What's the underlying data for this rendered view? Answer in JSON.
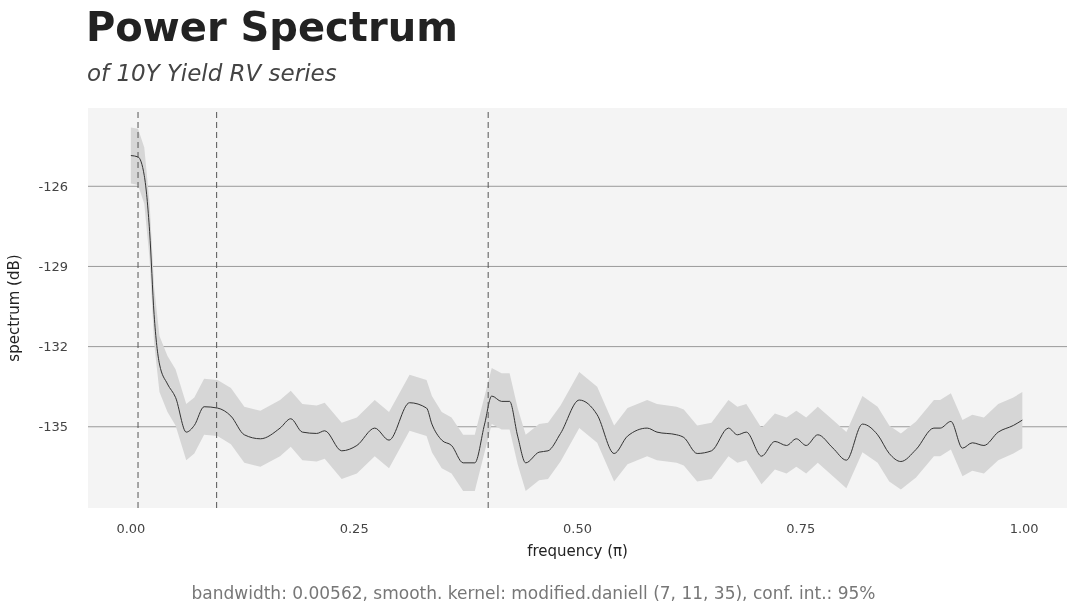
{
  "chart_data": {
    "type": "line",
    "title": "Power Spectrum",
    "subtitle": "of 10Y Yield RV series",
    "xlabel": "frequency (π)",
    "ylabel": "spectrum (dB)",
    "annotations": [
      "bandwidth: 0.00562, smooth. kernel: modified.daniell (7, 11, 35), conf. int.: 95%"
    ],
    "x": [
      0.0,
      0.008,
      0.015,
      0.021,
      0.026,
      0.032,
      0.041,
      0.05,
      0.062,
      0.071,
      0.082,
      0.097,
      0.112,
      0.127,
      0.145,
      0.167,
      0.179,
      0.192,
      0.208,
      0.217,
      0.236,
      0.253,
      0.273,
      0.289,
      0.312,
      0.331,
      0.337,
      0.348,
      0.359,
      0.372,
      0.385,
      0.396,
      0.404,
      0.415,
      0.424,
      0.433,
      0.442,
      0.457,
      0.467,
      0.481,
      0.502,
      0.522,
      0.541,
      0.556,
      0.578,
      0.589,
      0.611,
      0.619,
      0.634,
      0.65,
      0.669,
      0.679,
      0.689,
      0.706,
      0.721,
      0.734,
      0.745,
      0.756,
      0.769,
      0.786,
      0.801,
      0.819,
      0.836,
      0.849,
      0.862,
      0.879,
      0.899,
      0.906,
      0.918,
      0.931,
      0.942,
      0.955,
      0.971,
      0.988,
      0.998
    ],
    "series": [
      {
        "color": "#333333",
        "values": [
          -124.85,
          -124.9,
          -125.6,
          -127.7,
          -130.8,
          -132.65,
          -133.4,
          -133.9,
          -135.2,
          -134.95,
          -134.25,
          -134.3,
          -134.6,
          -135.3,
          -135.45,
          -135.05,
          -134.7,
          -135.2,
          -135.25,
          -135.15,
          -135.9,
          -135.7,
          -135.05,
          -135.5,
          -134.1,
          -134.3,
          -134.9,
          -135.5,
          -135.7,
          -136.35,
          -136.35,
          -134.9,
          -133.85,
          -134.05,
          -134.05,
          -135.35,
          -136.35,
          -135.95,
          -135.9,
          -135.25,
          -134.0,
          -134.55,
          -136.0,
          -135.35,
          -135.05,
          -135.2,
          -135.3,
          -135.4,
          -136.0,
          -135.9,
          -135.05,
          -135.3,
          -135.2,
          -136.1,
          -135.55,
          -135.7,
          -135.45,
          -135.7,
          -135.3,
          -135.8,
          -136.25,
          -134.9,
          -135.3,
          -136.0,
          -136.3,
          -135.85,
          -135.05,
          -135.05,
          -134.8,
          -135.8,
          -135.6,
          -135.7,
          -135.2,
          -134.95,
          -134.75
        ],
        "lower": [
          -125.9,
          -125.95,
          -126.65,
          -128.75,
          -131.85,
          -133.7,
          -134.45,
          -134.95,
          -136.25,
          -136.0,
          -135.3,
          -135.35,
          -135.65,
          -136.35,
          -136.5,
          -136.1,
          -135.75,
          -136.25,
          -136.3,
          -136.2,
          -136.95,
          -136.75,
          -136.1,
          -136.55,
          -135.15,
          -135.35,
          -135.95,
          -136.55,
          -136.75,
          -137.4,
          -137.4,
          -135.95,
          -134.9,
          -135.1,
          -135.1,
          -136.4,
          -137.4,
          -137.0,
          -136.95,
          -136.3,
          -135.05,
          -135.6,
          -137.05,
          -136.4,
          -136.1,
          -136.25,
          -136.35,
          -136.45,
          -137.05,
          -136.95,
          -136.1,
          -136.35,
          -136.25,
          -137.15,
          -136.6,
          -136.75,
          -136.5,
          -136.75,
          -136.35,
          -136.85,
          -137.3,
          -135.95,
          -136.35,
          -137.05,
          -137.35,
          -136.9,
          -136.1,
          -136.1,
          -135.85,
          -136.85,
          -136.65,
          -136.75,
          -136.25,
          -136.0,
          -135.8
        ],
        "upper": [
          -123.8,
          -123.85,
          -124.55,
          -126.65,
          -129.75,
          -131.6,
          -132.35,
          -132.85,
          -134.15,
          -133.9,
          -133.2,
          -133.25,
          -133.55,
          -134.25,
          -134.4,
          -134.0,
          -133.65,
          -134.15,
          -134.2,
          -134.1,
          -134.85,
          -134.65,
          -134.0,
          -134.45,
          -133.05,
          -133.25,
          -133.85,
          -134.45,
          -134.65,
          -135.3,
          -135.3,
          -133.85,
          -132.8,
          -133.0,
          -133.0,
          -134.3,
          -135.3,
          -134.9,
          -134.85,
          -134.2,
          -132.95,
          -133.5,
          -134.95,
          -134.3,
          -134.0,
          -134.15,
          -134.25,
          -134.35,
          -134.95,
          -134.85,
          -134.0,
          -134.25,
          -134.15,
          -135.05,
          -134.5,
          -134.65,
          -134.4,
          -134.65,
          -134.25,
          -134.75,
          -135.2,
          -133.85,
          -134.25,
          -134.95,
          -135.25,
          -134.8,
          -134.0,
          -134.0,
          -133.75,
          -134.75,
          -134.55,
          -134.65,
          -134.15,
          -133.9,
          -133.7
        ]
      }
    ],
    "xlim": [
      -0.048,
      1.048
    ],
    "ylim": [
      -138.04,
      -123.07
    ],
    "xticks": [
      {
        "value": 0,
        "label": "0.00"
      },
      {
        "value": 0.25,
        "label": "0.25"
      },
      {
        "value": 0.5,
        "label": "0.50"
      },
      {
        "value": 0.75,
        "label": "0.75"
      },
      {
        "value": 1,
        "label": "1.00"
      }
    ],
    "yticks": [
      -135,
      -132,
      -129,
      -126
    ],
    "grid": "y",
    "legend": false,
    "marker": "none",
    "line_style": "solid",
    "ref_lines": [
      {
        "axis": "x",
        "value": 0.008,
        "color": "#555555",
        "line_style": "dashed"
      },
      {
        "axis": "x",
        "value": 0.096,
        "color": "#555555",
        "line_style": "dashed"
      },
      {
        "axis": "x",
        "value": 0.4,
        "color": "#555555",
        "line_style": "dashed"
      }
    ]
  }
}
